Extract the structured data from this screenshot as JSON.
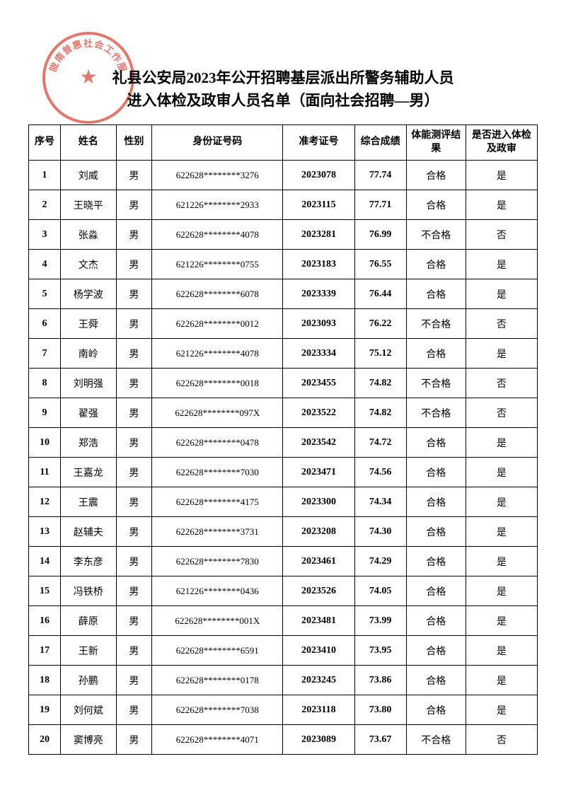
{
  "title_line1": "礼县公安局2023年公开招聘基层派出所警务辅助人员",
  "title_line2": "进入体检及政审人员名单（面向社会招聘—男）",
  "stamp_text": "陇南普惠社会工作服",
  "stamp_color": "#d94a3a",
  "columns": {
    "seq": "序号",
    "name": "姓名",
    "gender": "性别",
    "id": "身份证号码",
    "exam": "准考证号",
    "score": "综合成绩",
    "fitness": "体能测评结果",
    "pass": "是否进入体检及政审"
  },
  "rows": [
    {
      "seq": "1",
      "name": "刘威",
      "gender": "男",
      "id": "622628********3276",
      "exam": "2023078",
      "score": "77.74",
      "fitness": "合格",
      "pass": "是"
    },
    {
      "seq": "2",
      "name": "王晓平",
      "gender": "男",
      "id": "621226********2933",
      "exam": "2023115",
      "score": "77.71",
      "fitness": "合格",
      "pass": "是"
    },
    {
      "seq": "3",
      "name": "张淼",
      "gender": "男",
      "id": "622628********4078",
      "exam": "2023281",
      "score": "76.99",
      "fitness": "不合格",
      "pass": "否"
    },
    {
      "seq": "4",
      "name": "文杰",
      "gender": "男",
      "id": "621226********0755",
      "exam": "2023183",
      "score": "76.55",
      "fitness": "合格",
      "pass": "是"
    },
    {
      "seq": "5",
      "name": "杨学波",
      "gender": "男",
      "id": "622628********6078",
      "exam": "2023339",
      "score": "76.44",
      "fitness": "合格",
      "pass": "是"
    },
    {
      "seq": "6",
      "name": "王舜",
      "gender": "男",
      "id": "622628********0012",
      "exam": "2023093",
      "score": "76.22",
      "fitness": "不合格",
      "pass": "否"
    },
    {
      "seq": "7",
      "name": "南岭",
      "gender": "男",
      "id": "621226********4078",
      "exam": "2023334",
      "score": "75.12",
      "fitness": "合格",
      "pass": "是"
    },
    {
      "seq": "8",
      "name": "刘明强",
      "gender": "男",
      "id": "622628********0018",
      "exam": "2023455",
      "score": "74.82",
      "fitness": "不合格",
      "pass": "否"
    },
    {
      "seq": "9",
      "name": "翟强",
      "gender": "男",
      "id": "622628********097X",
      "exam": "2023522",
      "score": "74.82",
      "fitness": "不合格",
      "pass": "否"
    },
    {
      "seq": "10",
      "name": "郑浩",
      "gender": "男",
      "id": "622628********0478",
      "exam": "2023542",
      "score": "74.72",
      "fitness": "合格",
      "pass": "是"
    },
    {
      "seq": "11",
      "name": "王嘉龙",
      "gender": "男",
      "id": "622628********7030",
      "exam": "2023471",
      "score": "74.56",
      "fitness": "合格",
      "pass": "是"
    },
    {
      "seq": "12",
      "name": "王震",
      "gender": "男",
      "id": "622628********4175",
      "exam": "2023300",
      "score": "74.34",
      "fitness": "合格",
      "pass": "是"
    },
    {
      "seq": "13",
      "name": "赵辅夫",
      "gender": "男",
      "id": "622628********3731",
      "exam": "2023208",
      "score": "74.30",
      "fitness": "合格",
      "pass": "是"
    },
    {
      "seq": "14",
      "name": "李东彦",
      "gender": "男",
      "id": "622628********7830",
      "exam": "2023461",
      "score": "74.29",
      "fitness": "合格",
      "pass": "是"
    },
    {
      "seq": "15",
      "name": "冯铁桥",
      "gender": "男",
      "id": "621226********0436",
      "exam": "2023526",
      "score": "74.05",
      "fitness": "合格",
      "pass": "是"
    },
    {
      "seq": "16",
      "name": "薛原",
      "gender": "男",
      "id": "622628********001X",
      "exam": "2023481",
      "score": "73.99",
      "fitness": "合格",
      "pass": "是"
    },
    {
      "seq": "17",
      "name": "王新",
      "gender": "男",
      "id": "622628********6591",
      "exam": "2023410",
      "score": "73.95",
      "fitness": "合格",
      "pass": "是"
    },
    {
      "seq": "18",
      "name": "孙鹏",
      "gender": "男",
      "id": "622628********0178",
      "exam": "2023245",
      "score": "73.86",
      "fitness": "合格",
      "pass": "是"
    },
    {
      "seq": "19",
      "name": "刘何斌",
      "gender": "男",
      "id": "622628********7038",
      "exam": "2023118",
      "score": "73.80",
      "fitness": "合格",
      "pass": "是"
    },
    {
      "seq": "20",
      "name": "窦博亮",
      "gender": "男",
      "id": "622628********4071",
      "exam": "2023089",
      "score": "73.67",
      "fitness": "不合格",
      "pass": "否"
    }
  ]
}
